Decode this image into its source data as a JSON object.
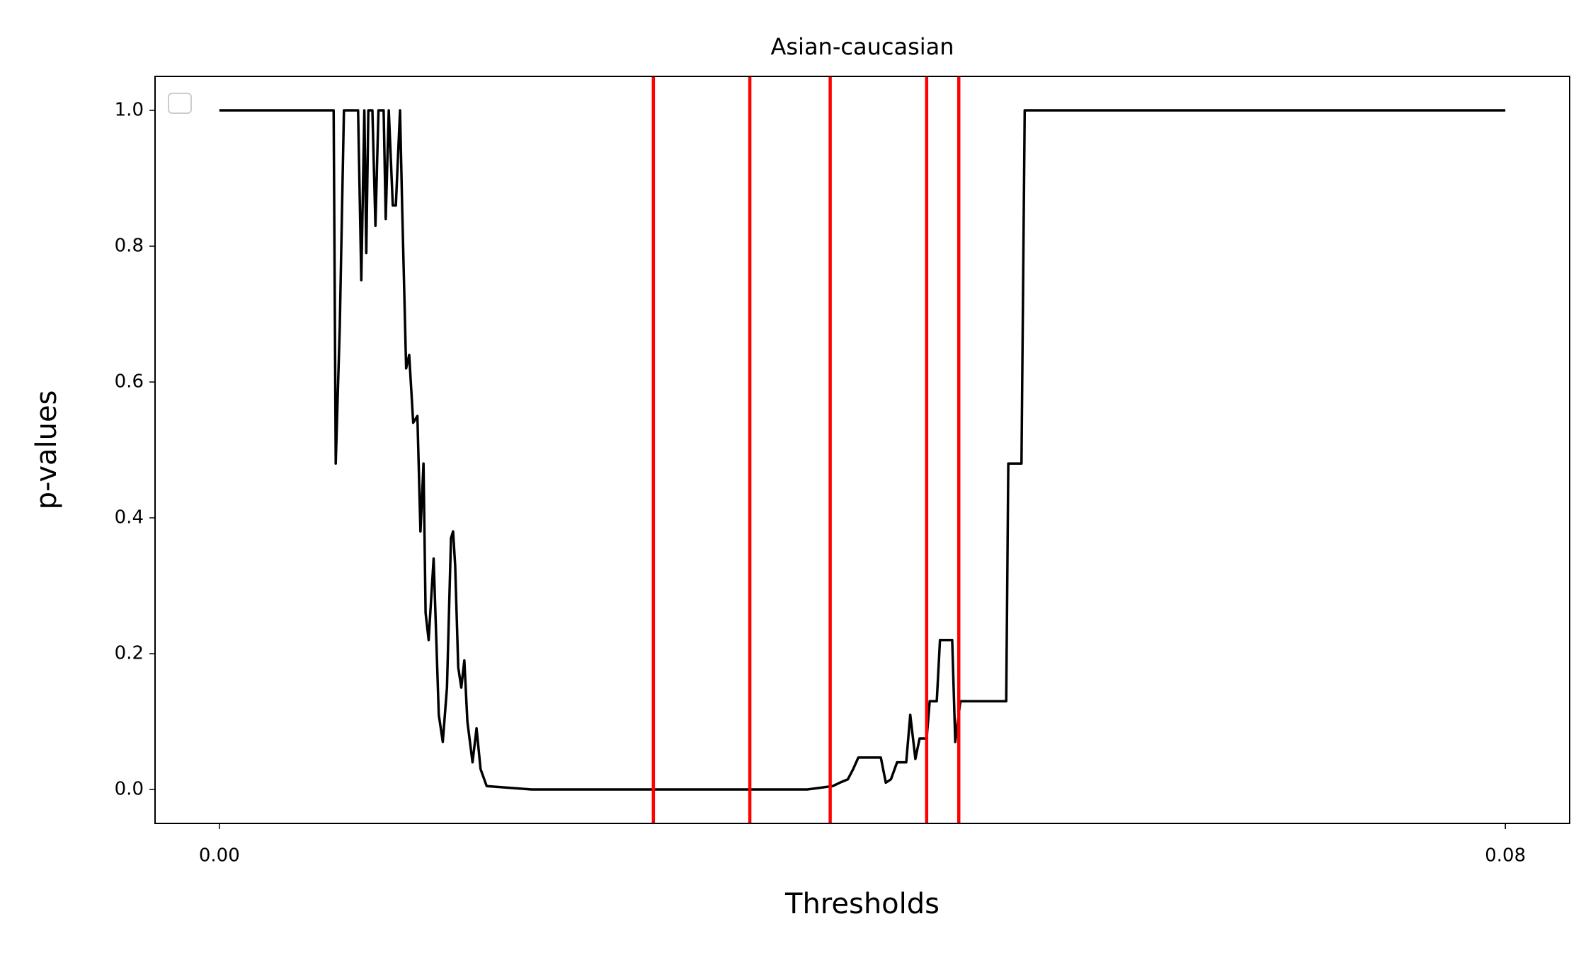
{
  "chart_data": {
    "type": "line",
    "title": "Asian-caucasian",
    "xlabel": "Thresholds",
    "ylabel": "p-values",
    "xlim": [
      -0.004,
      0.084
    ],
    "ylim": [
      -0.05,
      1.05
    ],
    "xticks": [
      {
        "value": 0,
        "label": "0.00"
      },
      {
        "value": 0.08,
        "label": "0.08"
      }
    ],
    "yticks": [
      {
        "value": 0,
        "label": "0.0"
      },
      0.2,
      0.4,
      0.6,
      0.8,
      {
        "value": 1,
        "label": "1.0"
      }
    ],
    "x": [
      0,
      0.00711,
      0.00724,
      0.00749,
      0.00775,
      0.00863,
      0.00883,
      0.00902,
      0.00914,
      0.00927,
      0.00952,
      0.00971,
      0.0099,
      0.01022,
      0.01035,
      0.01054,
      0.01079,
      0.01098,
      0.01124,
      0.01137,
      0.01162,
      0.01181,
      0.01206,
      0.01232,
      0.01251,
      0.0127,
      0.01283,
      0.01302,
      0.01333,
      0.01365,
      0.0139,
      0.01416,
      0.01441,
      0.01454,
      0.01467,
      0.01486,
      0.01505,
      0.01524,
      0.01543,
      0.01575,
      0.016,
      0.01625,
      0.01663,
      0.01943,
      0.03657,
      0.0372,
      0.03816,
      0.0386,
      0.0391,
      0.03943,
      0.03975,
      0.04115,
      0.04146,
      0.04178,
      0.04216,
      0.04273,
      0.04298,
      0.0433,
      0.04356,
      0.044,
      0.04419,
      0.04463,
      0.04483,
      0.04559,
      0.04578,
      0.0461,
      0.04895,
      0.04908,
      0.0499,
      0.0501,
      0.08
    ],
    "series": [
      {
        "color": "#000000",
        "values": [
          1.0,
          1.0,
          0.48,
          0.68,
          1.0,
          1.0,
          0.75,
          1.0,
          0.79,
          1.0,
          1.0,
          0.83,
          1.0,
          1.0,
          0.84,
          1.0,
          0.86,
          0.86,
          1.0,
          0.86,
          0.62,
          0.64,
          0.54,
          0.55,
          0.38,
          0.48,
          0.26,
          0.22,
          0.34,
          0.11,
          0.07,
          0.15,
          0.37,
          0.38,
          0.33,
          0.18,
          0.15,
          0.19,
          0.1,
          0.04,
          0.09,
          0.03,
          0.005,
          0.0,
          0.0,
          0.002,
          0.005,
          0.01,
          0.015,
          0.03,
          0.047,
          0.047,
          0.01,
          0.015,
          0.04,
          0.04,
          0.11,
          0.045,
          0.075,
          0.075,
          0.13,
          0.13,
          0.22,
          0.22,
          0.07,
          0.13,
          0.13,
          0.48,
          0.48,
          1.0,
          1.0
        ]
      }
    ],
    "vlines": {
      "color": "#ff0000",
      "x": [
        0.027,
        0.033,
        0.038,
        0.044,
        0.046
      ]
    }
  }
}
